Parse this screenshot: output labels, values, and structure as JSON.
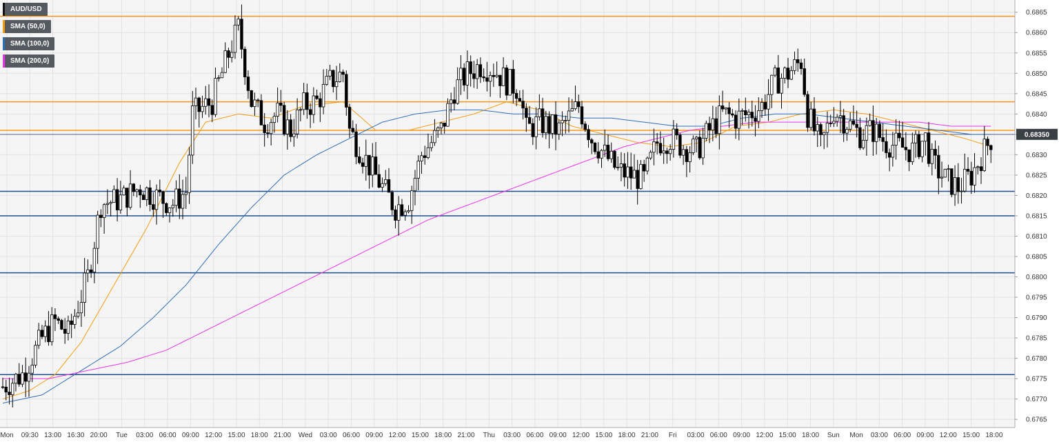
{
  "chart_data": {
    "type": "candlestick",
    "symbol": "AUD/USD",
    "legend": [
      {
        "label": "AUD/USD",
        "color": "#111111"
      },
      {
        "label": "SMA (50,0)",
        "color": "#f39c12"
      },
      {
        "label": "SMA (100,0)",
        "color": "#2f6db5"
      },
      {
        "label": "SMA (200,0)",
        "color": "#e833e8"
      }
    ],
    "ylim": [
      0.6763,
      0.6868
    ],
    "y_ticks": [
      "0.6765",
      "0.6770",
      "0.6775",
      "0.6780",
      "0.6785",
      "0.6790",
      "0.6795",
      "0.6800",
      "0.6805",
      "0.6810",
      "0.6815",
      "0.6820",
      "0.6825",
      "0.6830",
      "0.6835",
      "0.6840",
      "0.6845",
      "0.6850",
      "0.6855",
      "0.6860",
      "0.6865"
    ],
    "x_ticks": [
      "Mon",
      "09:30",
      "13:00",
      "16:30",
      "20:00",
      "Tue",
      "03:00",
      "06:00",
      "09:00",
      "12:00",
      "15:00",
      "18:00",
      "21:00",
      "Wed",
      "03:00",
      "06:00",
      "09:00",
      "12:00",
      "15:00",
      "18:00",
      "21:00",
      "Thu",
      "03:00",
      "06:00",
      "09:00",
      "12:00",
      "15:00",
      "18:00",
      "21:00",
      "Fri",
      "03:00",
      "06:00",
      "09:00",
      "12:00",
      "15:00",
      "18:00",
      "Sun",
      "Mon",
      "03:00",
      "06:00",
      "09:00",
      "12:00",
      "15:00",
      "18:00"
    ],
    "current_price": "0.68350",
    "current_price_value": 0.6835,
    "resistance_levels": [
      0.6864,
      0.6843,
      0.6836
    ],
    "support_levels": [
      0.6821,
      0.6815,
      0.6801,
      0.6776
    ],
    "colors": {
      "resistance": "#f5961e",
      "support": "#1f4e8c",
      "up": "#ffffff",
      "down": "#000000",
      "price_tag": "#3a3f45",
      "grid": "#e2e2e2",
      "bg": "#f5f5f5"
    },
    "ohlc_anchors": [
      [
        0,
        0.6773
      ],
      [
        6,
        0.6776
      ],
      [
        12,
        0.6785
      ],
      [
        16,
        0.6789
      ],
      [
        20,
        0.6786
      ],
      [
        26,
        0.68
      ],
      [
        30,
        0.6818
      ],
      [
        36,
        0.6819
      ],
      [
        42,
        0.6822
      ],
      [
        46,
        0.682
      ],
      [
        52,
        0.6818
      ],
      [
        56,
        0.6821
      ],
      [
        58,
        0.684
      ],
      [
        64,
        0.6843
      ],
      [
        70,
        0.6857
      ],
      [
        72,
        0.6861
      ],
      [
        76,
        0.6843
      ],
      [
        80,
        0.6838
      ],
      [
        84,
        0.684
      ],
      [
        88,
        0.6836
      ],
      [
        92,
        0.6842
      ],
      [
        96,
        0.6843
      ],
      [
        100,
        0.6848
      ],
      [
        104,
        0.685
      ],
      [
        106,
        0.6836
      ],
      [
        110,
        0.683
      ],
      [
        116,
        0.6822
      ],
      [
        120,
        0.6817
      ],
      [
        124,
        0.6819
      ],
      [
        128,
        0.683
      ],
      [
        134,
        0.6836
      ],
      [
        138,
        0.6846
      ],
      [
        142,
        0.685
      ],
      [
        146,
        0.6852
      ],
      [
        150,
        0.6851
      ],
      [
        154,
        0.6848
      ],
      [
        158,
        0.6846
      ],
      [
        160,
        0.6836
      ],
      [
        164,
        0.6838
      ],
      [
        170,
        0.6836
      ],
      [
        176,
        0.6842
      ],
      [
        180,
        0.6834
      ],
      [
        184,
        0.683
      ],
      [
        188,
        0.6826
      ],
      [
        192,
        0.6825
      ],
      [
        196,
        0.6824
      ],
      [
        200,
        0.6833
      ],
      [
        204,
        0.6834
      ],
      [
        208,
        0.6832
      ],
      [
        212,
        0.6831
      ],
      [
        216,
        0.6836
      ],
      [
        220,
        0.684
      ],
      [
        224,
        0.6839
      ],
      [
        228,
        0.684
      ],
      [
        232,
        0.6842
      ],
      [
        236,
        0.6848
      ],
      [
        240,
        0.685
      ],
      [
        244,
        0.6853
      ],
      [
        246,
        0.684
      ],
      [
        250,
        0.6832
      ],
      [
        254,
        0.6841
      ],
      [
        258,
        0.6838
      ],
      [
        262,
        0.6835
      ],
      [
        266,
        0.6836
      ],
      [
        270,
        0.6833
      ],
      [
        274,
        0.6832
      ],
      [
        278,
        0.6831
      ],
      [
        282,
        0.6834
      ],
      [
        284,
        0.6828
      ],
      [
        288,
        0.6824
      ],
      [
        292,
        0.6822
      ],
      [
        296,
        0.6825
      ],
      [
        300,
        0.6831
      ],
      [
        302,
        0.6834
      ]
    ],
    "sma50": [
      [
        0,
        0.677
      ],
      [
        8,
        0.6772
      ],
      [
        16,
        0.6776
      ],
      [
        24,
        0.6784
      ],
      [
        34,
        0.6798
      ],
      [
        44,
        0.6812
      ],
      [
        54,
        0.6828
      ],
      [
        62,
        0.6838
      ],
      [
        72,
        0.684
      ],
      [
        82,
        0.6839
      ],
      [
        92,
        0.6842
      ],
      [
        104,
        0.6843
      ],
      [
        114,
        0.6836
      ],
      [
        124,
        0.6836
      ],
      [
        134,
        0.6838
      ],
      [
        144,
        0.684
      ],
      [
        154,
        0.6843
      ],
      [
        164,
        0.6841
      ],
      [
        174,
        0.6837
      ],
      [
        184,
        0.6835
      ],
      [
        194,
        0.6833
      ],
      [
        204,
        0.6832
      ],
      [
        214,
        0.6833
      ],
      [
        224,
        0.6837
      ],
      [
        234,
        0.6838
      ],
      [
        244,
        0.684
      ],
      [
        254,
        0.6841
      ],
      [
        264,
        0.684
      ],
      [
        274,
        0.6838
      ],
      [
        284,
        0.6836
      ],
      [
        294,
        0.6834
      ],
      [
        302,
        0.6832
      ]
    ],
    "sma100": [
      [
        0,
        0.6769
      ],
      [
        12,
        0.6771
      ],
      [
        24,
        0.6777
      ],
      [
        36,
        0.6783
      ],
      [
        46,
        0.679
      ],
      [
        56,
        0.6798
      ],
      [
        66,
        0.6808
      ],
      [
        76,
        0.6817
      ],
      [
        86,
        0.6825
      ],
      [
        96,
        0.683
      ],
      [
        106,
        0.6834
      ],
      [
        116,
        0.6838
      ],
      [
        126,
        0.684
      ],
      [
        136,
        0.6841
      ],
      [
        146,
        0.6841
      ],
      [
        156,
        0.684
      ],
      [
        166,
        0.684
      ],
      [
        176,
        0.6839
      ],
      [
        186,
        0.6839
      ],
      [
        196,
        0.6838
      ],
      [
        206,
        0.6837
      ],
      [
        216,
        0.6837
      ],
      [
        226,
        0.6839
      ],
      [
        236,
        0.684
      ],
      [
        246,
        0.684
      ],
      [
        256,
        0.6839
      ],
      [
        266,
        0.6838
      ],
      [
        276,
        0.6837
      ],
      [
        286,
        0.6836
      ],
      [
        296,
        0.6835
      ],
      [
        302,
        0.6835
      ]
    ],
    "sma200": [
      [
        0,
        0.6775
      ],
      [
        14,
        0.6775
      ],
      [
        26,
        0.6777
      ],
      [
        38,
        0.6779
      ],
      [
        50,
        0.6782
      ],
      [
        60,
        0.6786
      ],
      [
        70,
        0.679
      ],
      [
        80,
        0.6794
      ],
      [
        90,
        0.6798
      ],
      [
        100,
        0.6802
      ],
      [
        110,
        0.6806
      ],
      [
        120,
        0.681
      ],
      [
        130,
        0.6814
      ],
      [
        140,
        0.6817
      ],
      [
        150,
        0.682
      ],
      [
        160,
        0.6823
      ],
      [
        170,
        0.6826
      ],
      [
        180,
        0.6829
      ],
      [
        190,
        0.6832
      ],
      [
        200,
        0.6834
      ],
      [
        210,
        0.6836
      ],
      [
        220,
        0.6837
      ],
      [
        230,
        0.6838
      ],
      [
        240,
        0.6838
      ],
      [
        250,
        0.6838
      ],
      [
        260,
        0.6838
      ],
      [
        270,
        0.6838
      ],
      [
        280,
        0.6838
      ],
      [
        290,
        0.6837
      ],
      [
        302,
        0.6837
      ]
    ]
  }
}
